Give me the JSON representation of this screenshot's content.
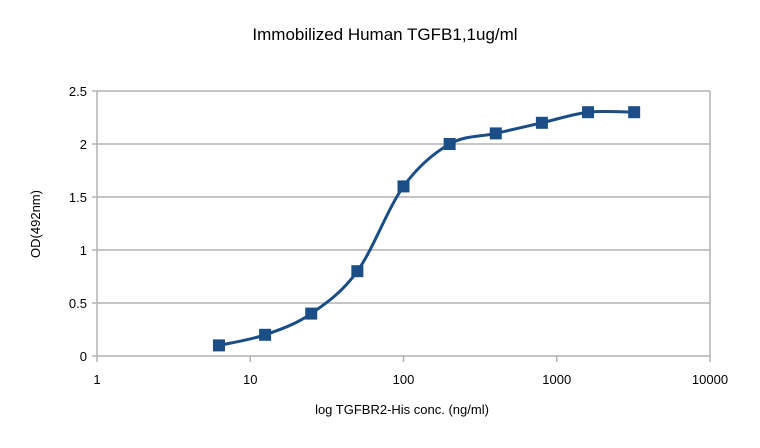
{
  "chart_data": {
    "type": "line",
    "title": "Immobilized Human TGFB1,1ug/ml",
    "xlabel": "log TGFBR2-His conc. (ng/ml)",
    "ylabel": "OD(492nm)",
    "x_scale": "log",
    "xlim": [
      1,
      10000
    ],
    "ylim": [
      0,
      2.5
    ],
    "x_ticks": [
      "1",
      "10",
      "100",
      "1000",
      "10000"
    ],
    "x_tick_values": [
      1,
      10,
      100,
      1000,
      10000
    ],
    "y_ticks": [
      "0",
      "0.5",
      "1",
      "1.5",
      "2",
      "2.5"
    ],
    "y_tick_values": [
      0,
      0.5,
      1,
      1.5,
      2,
      2.5
    ],
    "grid": "horizontal",
    "legend": "none",
    "series": [
      {
        "name": "TGFBR2-His",
        "color": "#1b4d86",
        "marker": "square",
        "smooth": true,
        "x": [
          6.25,
          12.5,
          25,
          50,
          100,
          200,
          400,
          800,
          1600,
          3200
        ],
        "y": [
          0.1,
          0.2,
          0.4,
          0.8,
          1.6,
          2.0,
          2.1,
          2.2,
          2.3,
          2.3
        ]
      }
    ]
  }
}
